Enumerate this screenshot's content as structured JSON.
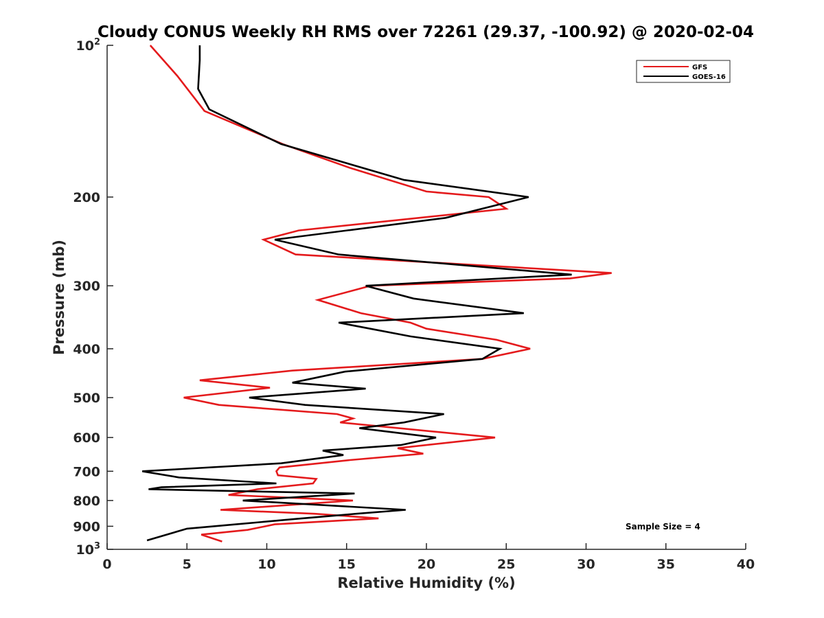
{
  "chart_data": {
    "type": "line",
    "title": "Cloudy CONUS Weekly RH RMS over 72261 (29.37, -100.92) @ 2020-02-04",
    "xlabel": "Relative Humidity (%)",
    "ylabel": "Pressure (mb)",
    "xlim": [
      0,
      40
    ],
    "ylim": [
      100,
      1000
    ],
    "y_scale": "log",
    "y_reversed": true,
    "x_ticks": [
      0,
      5,
      10,
      15,
      20,
      25,
      30,
      35,
      40
    ],
    "y_ticks": [
      {
        "value": 100,
        "label": "10",
        "sup": "2"
      },
      {
        "value": 200,
        "label": "200",
        "sup": ""
      },
      {
        "value": 300,
        "label": "300",
        "sup": ""
      },
      {
        "value": 400,
        "label": "400",
        "sup": ""
      },
      {
        "value": 500,
        "label": "500",
        "sup": ""
      },
      {
        "value": 600,
        "label": "600",
        "sup": ""
      },
      {
        "value": 700,
        "label": "700",
        "sup": ""
      },
      {
        "value": 800,
        "label": "800",
        "sup": ""
      },
      {
        "value": 900,
        "label": "900",
        "sup": ""
      },
      {
        "value": 1000,
        "label": "10",
        "sup": "3"
      }
    ],
    "grid": false,
    "legend_position": "top-right",
    "series": [
      {
        "name": "GFS",
        "color": "#e41a1c",
        "points": [
          [
            2.7,
            100
          ],
          [
            4.4,
            115
          ],
          [
            6.1,
            135
          ],
          [
            11.0,
            157
          ],
          [
            15.2,
            175
          ],
          [
            20.0,
            195
          ],
          [
            23.9,
            200
          ],
          [
            25.0,
            211
          ],
          [
            12.0,
            233
          ],
          [
            9.8,
            243
          ],
          [
            11.8,
            260
          ],
          [
            31.6,
            283
          ],
          [
            29.0,
            290
          ],
          [
            16.5,
            300
          ],
          [
            13.2,
            320
          ],
          [
            15.9,
            340
          ],
          [
            19.0,
            355
          ],
          [
            20.0,
            365
          ],
          [
            24.4,
            384
          ],
          [
            26.5,
            400
          ],
          [
            23.5,
            419
          ],
          [
            11.6,
            442
          ],
          [
            5.8,
            462
          ],
          [
            10.2,
            478
          ],
          [
            4.8,
            500
          ],
          [
            7.0,
            517
          ],
          [
            14.4,
            539
          ],
          [
            15.4,
            550
          ],
          [
            14.6,
            560
          ],
          [
            24.3,
            600
          ],
          [
            18.2,
            630
          ],
          [
            19.8,
            646
          ],
          [
            15.2,
            665
          ],
          [
            10.8,
            688
          ],
          [
            10.6,
            700
          ],
          [
            10.7,
            713
          ],
          [
            13.1,
            725
          ],
          [
            12.9,
            740
          ],
          [
            9.4,
            760
          ],
          [
            7.6,
            780
          ],
          [
            15.4,
            800
          ],
          [
            7.1,
            835
          ],
          [
            13.0,
            850
          ],
          [
            17.0,
            868
          ],
          [
            10.5,
            892
          ],
          [
            8.8,
            915
          ],
          [
            5.9,
            935
          ],
          [
            7.2,
            965
          ]
        ]
      },
      {
        "name": "GOES-16",
        "color": "#000000",
        "points": [
          [
            5.8,
            100
          ],
          [
            5.8,
            107
          ],
          [
            5.7,
            122
          ],
          [
            6.4,
            134
          ],
          [
            10.9,
            157
          ],
          [
            18.6,
            185
          ],
          [
            26.4,
            200
          ],
          [
            21.2,
            220
          ],
          [
            10.5,
            243
          ],
          [
            14.5,
            260
          ],
          [
            29.1,
            285
          ],
          [
            16.2,
            300
          ],
          [
            19.2,
            318
          ],
          [
            26.1,
            340
          ],
          [
            14.5,
            355
          ],
          [
            19.0,
            378
          ],
          [
            24.6,
            400
          ],
          [
            23.5,
            419
          ],
          [
            14.9,
            444
          ],
          [
            11.6,
            467
          ],
          [
            16.2,
            480
          ],
          [
            8.9,
            500
          ],
          [
            12.4,
            517
          ],
          [
            21.1,
            539
          ],
          [
            18.6,
            560
          ],
          [
            15.8,
            575
          ],
          [
            20.6,
            600
          ],
          [
            18.4,
            621
          ],
          [
            13.5,
            637
          ],
          [
            14.8,
            650
          ],
          [
            10.9,
            675
          ],
          [
            2.2,
            700
          ],
          [
            4.5,
            720
          ],
          [
            10.6,
            740
          ],
          [
            3.4,
            753
          ],
          [
            2.6,
            760
          ],
          [
            15.5,
            775
          ],
          [
            8.5,
            800
          ],
          [
            18.7,
            835
          ],
          [
            15.6,
            850
          ],
          [
            11.9,
            870
          ],
          [
            5.0,
            910
          ],
          [
            2.5,
            960
          ]
        ]
      }
    ],
    "legend": [
      "GFS",
      "GOES-16"
    ],
    "annotation": "Sample Size = 4"
  }
}
